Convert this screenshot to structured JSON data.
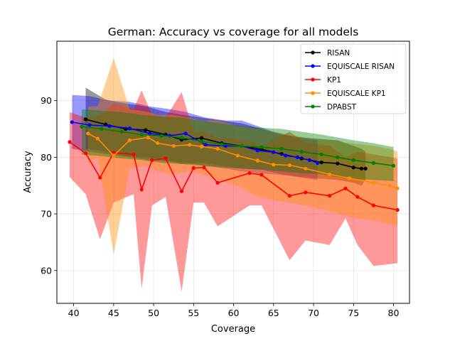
{
  "chart_data": {
    "type": "line",
    "title": "German: Accuracy vs coverage for all models",
    "xlabel": "Coverage",
    "ylabel": "Accuracy",
    "xlim": [
      37.9,
      82.0
    ],
    "ylim": [
      54.2,
      100.5
    ],
    "xticks": [
      40,
      45,
      50,
      55,
      60,
      65,
      70,
      75,
      80
    ],
    "yticks": [
      60,
      70,
      80,
      90
    ],
    "grid": true,
    "legend_position": "top-right",
    "series": [
      {
        "name": "RISAN",
        "color": "#000000",
        "x": [
          41.5,
          44.0,
          46.5,
          49.0,
          51.5,
          53.5,
          56.0,
          58.5,
          61.0,
          63.5,
          66.0,
          68.5,
          71.0,
          73.0,
          75.0,
          76.0,
          76.5
        ],
        "y": [
          86.7,
          85.8,
          85.0,
          84.8,
          84.0,
          83.1,
          83.4,
          82.5,
          82.0,
          81.4,
          80.6,
          79.8,
          79.1,
          78.9,
          78.2,
          78.0,
          78.0
        ],
        "lower": [
          81.5,
          81.0,
          80.2,
          80.0,
          79.5,
          78.8,
          79.0,
          78.5,
          78.0,
          77.8,
          77.0,
          76.5,
          76.2,
          76.0,
          75.5,
          75.0,
          76.0
        ],
        "upper": [
          92.3,
          90.2,
          89.5,
          89.0,
          88.0,
          87.5,
          87.0,
          86.5,
          86.0,
          85.0,
          84.0,
          83.5,
          83.2,
          83.0,
          82.0,
          81.5,
          81.0
        ]
      },
      {
        "name": "EQUISCALE RISAN",
        "color": "#0000ff",
        "x": [
          39.8,
          42.0,
          44.5,
          47.0,
          49.5,
          52.0,
          54.0,
          56.5,
          59.0,
          61.0,
          63.0,
          65.0,
          66.5,
          68.0,
          69.5,
          70.5
        ],
        "y": [
          86.2,
          85.7,
          85.5,
          85.1,
          84.2,
          83.8,
          84.2,
          82.2,
          82.0,
          82.0,
          81.2,
          80.9,
          80.3,
          80.0,
          79.5,
          79.0
        ],
        "lower": [
          81.5,
          81.0,
          80.5,
          80.0,
          79.5,
          79.2,
          79.0,
          78.5,
          78.0,
          77.5,
          77.2,
          77.0,
          76.8,
          76.5,
          76.2,
          76.0
        ],
        "upper": [
          91.0,
          90.8,
          90.0,
          89.8,
          89.0,
          88.5,
          88.0,
          87.0,
          86.5,
          86.5,
          85.5,
          84.5,
          84.0,
          83.5,
          83.2,
          83.0
        ]
      },
      {
        "name": "KP1",
        "color": "#ff0000",
        "x": [
          39.5,
          41.5,
          43.3,
          45.0,
          47.5,
          48.5,
          49.8,
          51.5,
          53.5,
          55.0,
          56.3,
          58.0,
          62.0,
          63.5,
          67.0,
          69.0,
          72.0,
          74.0,
          75.5,
          77.5,
          80.5
        ],
        "y": [
          82.7,
          80.7,
          76.4,
          80.8,
          80.5,
          74.3,
          79.5,
          79.8,
          74.0,
          78.1,
          78.2,
          75.5,
          77.2,
          76.9,
          73.2,
          73.8,
          73.2,
          74.5,
          73.0,
          71.5,
          70.7
        ],
        "lower": [
          76.5,
          73.5,
          65.5,
          72.0,
          73.5,
          56.8,
          71.5,
          73.0,
          56.3,
          72.0,
          72.0,
          67.8,
          71.5,
          71.5,
          61.8,
          65.3,
          64.5,
          69.2,
          64.5,
          60.8,
          61.3
        ],
        "upper": [
          88.0,
          87.0,
          87.5,
          89.5,
          88.5,
          91.8,
          87.5,
          87.0,
          91.5,
          84.5,
          84.5,
          83.5,
          83.0,
          82.0,
          84.5,
          82.5,
          82.0,
          80.0,
          81.0,
          80.5,
          79.8
        ]
      },
      {
        "name": "EQUISCALE KP1",
        "color": "#ff8c00",
        "x": [
          41.8,
          43.0,
          45.0,
          47.0,
          49.3,
          50.5,
          52.5,
          54.5,
          56.0,
          58.0,
          60.5,
          63.0,
          65.0,
          67.0,
          69.0,
          72.0,
          74.5,
          77.5,
          79.5,
          80.5
        ],
        "y": [
          84.2,
          83.3,
          80.3,
          83.0,
          83.5,
          82.5,
          82.0,
          82.2,
          81.9,
          81.5,
          80.3,
          79.4,
          78.7,
          78.6,
          78.0,
          77.0,
          76.3,
          75.5,
          75.0,
          74.5
        ],
        "lower": [
          79.0,
          80.0,
          62.8,
          78.0,
          78.5,
          77.5,
          77.0,
          77.5,
          77.0,
          76.0,
          75.0,
          73.0,
          72.5,
          72.0,
          71.5,
          70.5,
          69.5,
          68.8,
          68.2,
          67.8
        ],
        "upper": [
          89.0,
          89.0,
          97.5,
          88.5,
          88.0,
          87.5,
          87.5,
          87.0,
          86.5,
          86.5,
          85.5,
          85.0,
          84.5,
          84.0,
          83.5,
          83.0,
          82.5,
          82.0,
          81.5,
          81.0
        ]
      },
      {
        "name": "DPABST",
        "color": "#008000",
        "x": [
          41.0,
          43.5,
          46.0,
          48.5,
          51.0,
          53.5,
          56.0,
          58.5,
          61.0,
          63.5,
          66.0,
          68.5,
          71.0,
          73.0,
          75.0,
          77.5,
          80.0
        ],
        "y": [
          85.4,
          85.0,
          84.5,
          84.0,
          83.8,
          83.5,
          82.8,
          82.3,
          82.0,
          81.8,
          81.5,
          81.0,
          80.5,
          80.0,
          79.5,
          79.0,
          78.5
        ],
        "lower": [
          80.5,
          80.2,
          79.8,
          79.5,
          79.0,
          78.8,
          78.5,
          78.2,
          78.0,
          77.8,
          77.5,
          77.2,
          77.0,
          76.5,
          76.2,
          76.0,
          75.8
        ],
        "upper": [
          88.5,
          88.2,
          88.0,
          87.5,
          87.2,
          87.0,
          86.5,
          86.0,
          85.5,
          85.2,
          85.0,
          84.5,
          84.0,
          83.5,
          83.0,
          82.5,
          81.8
        ]
      }
    ]
  }
}
